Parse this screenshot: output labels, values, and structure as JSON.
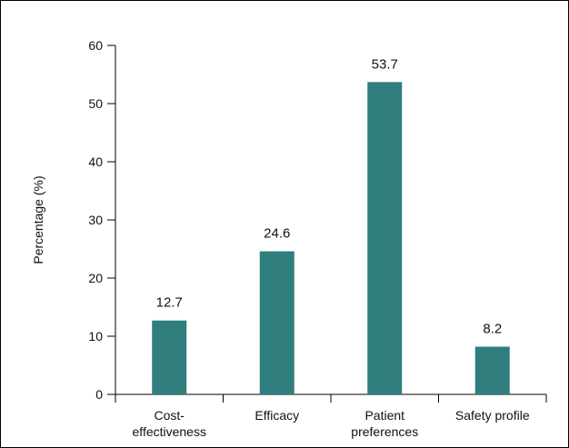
{
  "chart_data": {
    "type": "bar",
    "title": "",
    "xlabel": "",
    "ylabel": "Percentage (%)",
    "ylim": [
      0,
      60
    ],
    "yticks": [
      0,
      10,
      20,
      30,
      40,
      50,
      60
    ],
    "grid": false,
    "legend": "none",
    "bar_color": "#307E7E",
    "categories": [
      [
        "Cost-",
        "effectiveness"
      ],
      [
        "Efficacy"
      ],
      [
        "Patient",
        "preferences"
      ],
      [
        "Safety profile"
      ]
    ],
    "values": [
      12.7,
      24.6,
      53.7,
      8.2
    ],
    "value_labels": [
      "12.7",
      "24.6",
      "53.7",
      "8.2"
    ]
  }
}
